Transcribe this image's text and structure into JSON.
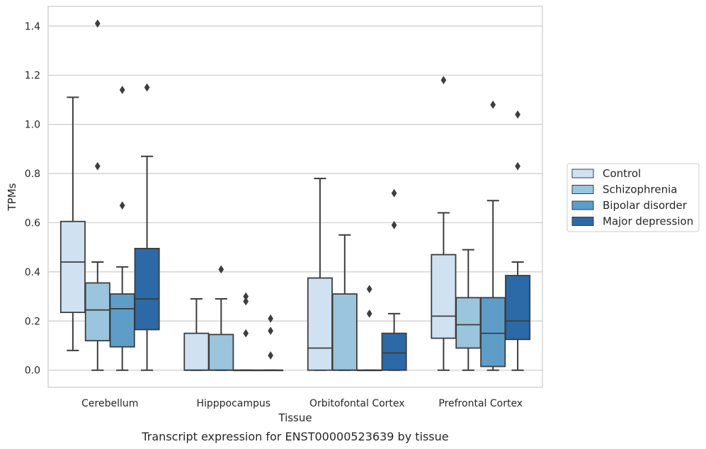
{
  "chart_data": {
    "type": "box",
    "xlabel": "Tissue",
    "ylabel": "TPMs",
    "caption": "Transcript expression for ENST00000523639 by tissue",
    "ylim": [
      -0.07,
      1.48
    ],
    "yticks": [
      "0.0",
      "0.2",
      "0.4",
      "0.6",
      "0.8",
      "1.0",
      "1.2",
      "1.4"
    ],
    "grid": "horizontal",
    "legend_position": "right",
    "categories": [
      "Cerebellum",
      "Hipppocampus",
      "Orbitofontal Cortex",
      "Prefrontal Cortex"
    ],
    "series": [
      {
        "name": "Control",
        "color": "#d0e1f2",
        "boxes": [
          {
            "whislo": 0.08,
            "q1": 0.235,
            "med": 0.44,
            "q3": 0.605,
            "whishi": 1.11,
            "fliers": []
          },
          {
            "whislo": 0.0,
            "q1": 0.0,
            "med": 0.0,
            "q3": 0.15,
            "whishi": 0.29,
            "fliers": []
          },
          {
            "whislo": 0.0,
            "q1": 0.0,
            "med": 0.09,
            "q3": 0.375,
            "whishi": 0.78,
            "fliers": []
          },
          {
            "whislo": 0.0,
            "q1": 0.13,
            "med": 0.22,
            "q3": 0.47,
            "whishi": 0.64,
            "fliers": [
              1.18
            ]
          }
        ]
      },
      {
        "name": "Schizophrenia",
        "color": "#9ac5dd",
        "boxes": [
          {
            "whislo": 0.0,
            "q1": 0.12,
            "med": 0.245,
            "q3": 0.355,
            "whishi": 0.44,
            "fliers": [
              0.83,
              1.41
            ]
          },
          {
            "whislo": 0.0,
            "q1": 0.0,
            "med": 0.0,
            "q3": 0.145,
            "whishi": 0.29,
            "fliers": [
              0.41
            ]
          },
          {
            "whislo": 0.0,
            "q1": 0.0,
            "med": 0.0,
            "q3": 0.31,
            "whishi": 0.55,
            "fliers": []
          },
          {
            "whislo": 0.0,
            "q1": 0.09,
            "med": 0.185,
            "q3": 0.295,
            "whishi": 0.49,
            "fliers": []
          }
        ]
      },
      {
        "name": "Bipolar disorder",
        "color": "#5d9dc8",
        "boxes": [
          {
            "whislo": 0.0,
            "q1": 0.095,
            "med": 0.25,
            "q3": 0.31,
            "whishi": 0.42,
            "fliers": [
              0.67,
              1.14
            ]
          },
          {
            "whislo": 0.0,
            "q1": 0.0,
            "med": 0.0,
            "q3": 0.0,
            "whishi": 0.0,
            "fliers": [
              0.15,
              0.28,
              0.3
            ]
          },
          {
            "whislo": 0.0,
            "q1": 0.0,
            "med": 0.0,
            "q3": 0.0,
            "whishi": 0.0,
            "fliers": [
              0.23,
              0.33
            ]
          },
          {
            "whislo": 0.0,
            "q1": 0.015,
            "med": 0.15,
            "q3": 0.295,
            "whishi": 0.69,
            "fliers": [
              1.08
            ]
          }
        ]
      },
      {
        "name": "Major depression",
        "color": "#2c69a7",
        "boxes": [
          {
            "whislo": 0.0,
            "q1": 0.165,
            "med": 0.29,
            "q3": 0.495,
            "whishi": 0.87,
            "fliers": [
              1.15
            ]
          },
          {
            "whislo": 0.0,
            "q1": 0.0,
            "med": 0.0,
            "q3": 0.0,
            "whishi": 0.0,
            "fliers": [
              0.06,
              0.16,
              0.21
            ]
          },
          {
            "whislo": 0.0,
            "q1": 0.0,
            "med": 0.07,
            "q3": 0.15,
            "whishi": 0.23,
            "fliers": [
              0.59,
              0.72
            ]
          },
          {
            "whislo": 0.0,
            "q1": 0.125,
            "med": 0.2,
            "q3": 0.385,
            "whishi": 0.44,
            "fliers": [
              0.83,
              1.04
            ]
          }
        ]
      }
    ]
  }
}
